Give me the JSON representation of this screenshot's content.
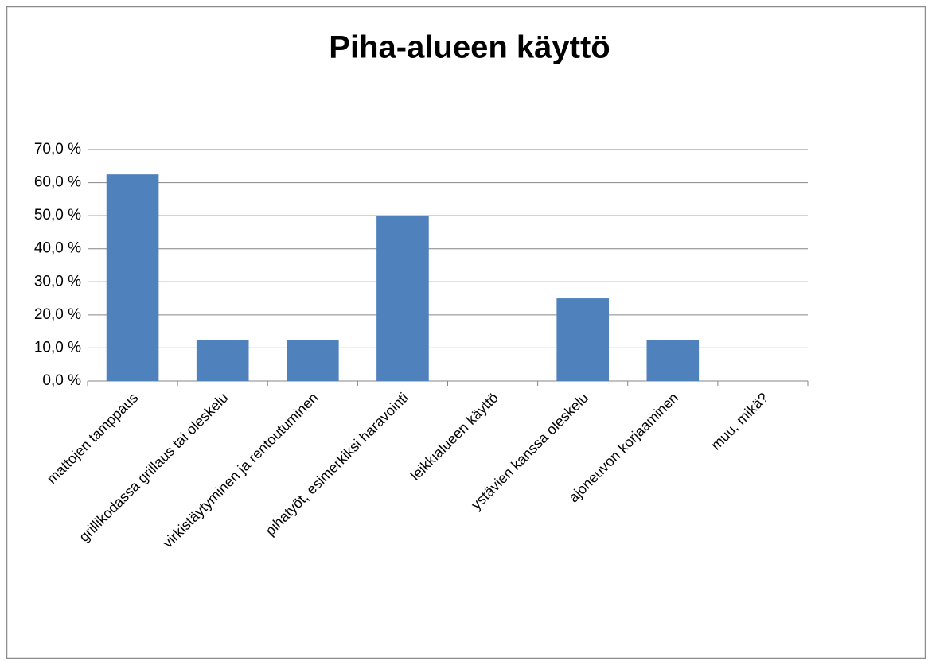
{
  "chart_data": {
    "type": "bar",
    "title": "Piha-alueen käyttö",
    "categories": [
      "mattojen tamppaus",
      "grillikodassa grillaus tai oleskelu",
      "virkistäytyminen ja rentoutuminen",
      "pihatyöt, esimerkiksi haravointi",
      "leikkialueen käyttö",
      "ystävien kanssa oleskelu",
      "ajoneuvon korjaaminen",
      "muu, mikä?"
    ],
    "values": [
      62.5,
      12.5,
      12.5,
      50,
      0,
      25,
      12.5,
      0
    ],
    "color": "#4f81bd",
    "ylim": [
      0,
      70
    ],
    "yticks": [
      {
        "value": 0,
        "label": "0,0 %"
      },
      {
        "value": 10,
        "label": "10,0 %"
      },
      {
        "value": 20,
        "label": "20,0 %"
      },
      {
        "value": 30,
        "label": "30,0 %"
      },
      {
        "value": 40,
        "label": "40,0 %"
      },
      {
        "value": 50,
        "label": "50,0 %"
      },
      {
        "value": 60,
        "label": "60,0 %"
      },
      {
        "value": 70,
        "label": "70,0 %"
      }
    ],
    "grid": true
  }
}
